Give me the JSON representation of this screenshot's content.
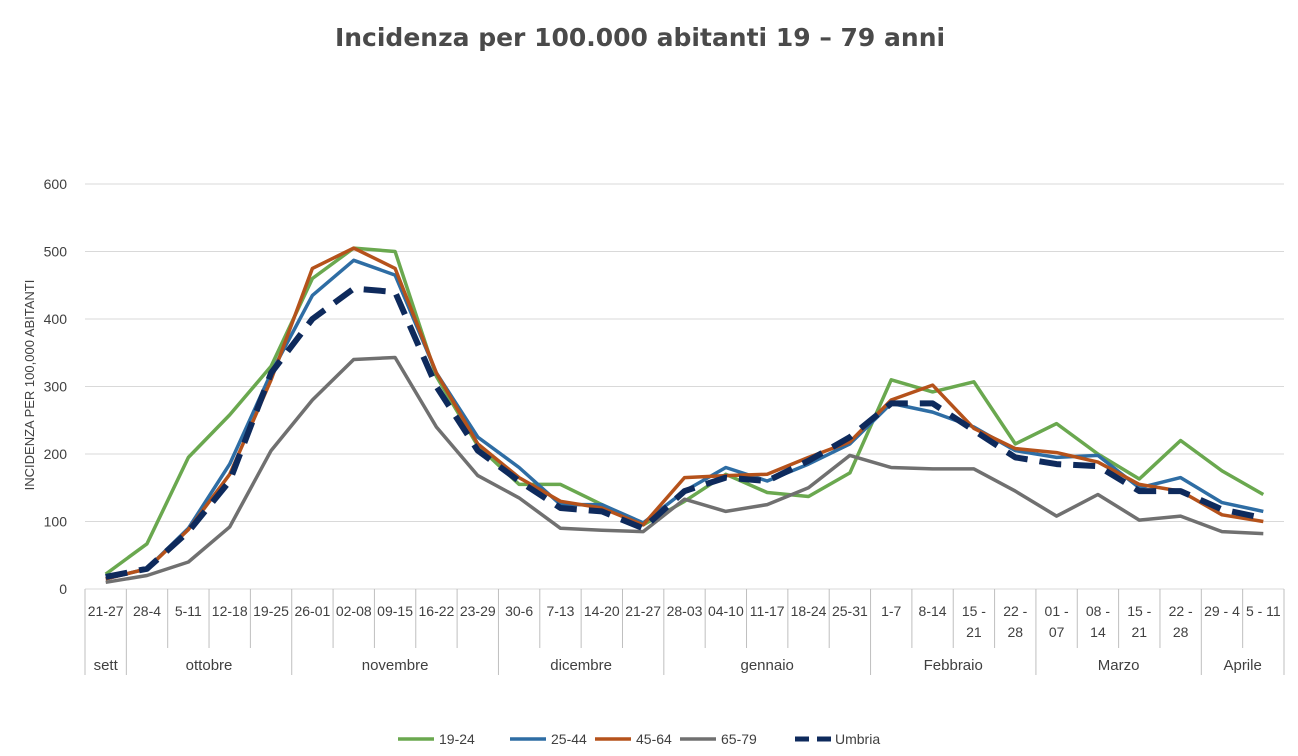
{
  "chart_data": {
    "type": "line",
    "title": "Incidenza per 100.000 abitanti 19 – 79 anni",
    "ylabel": "INCIDENZA PER 100,000 ABITANTI",
    "ylim": [
      0,
      600
    ],
    "yticks": [
      "0",
      "100",
      "200",
      "300",
      "400",
      "500",
      "600"
    ],
    "categories": [
      [
        "21-27"
      ],
      [
        "28-4"
      ],
      [
        "5-11"
      ],
      [
        "12-18"
      ],
      [
        "19-25"
      ],
      [
        "26-01"
      ],
      [
        "02-08"
      ],
      [
        "09-15"
      ],
      [
        "16-22"
      ],
      [
        "23-29"
      ],
      [
        "30-6"
      ],
      [
        "7-13"
      ],
      [
        "14-20"
      ],
      [
        "21-27"
      ],
      [
        "28-03"
      ],
      [
        "04-10"
      ],
      [
        "11-17"
      ],
      [
        "18-24"
      ],
      [
        "25-31"
      ],
      [
        "1-7"
      ],
      [
        "8-14"
      ],
      [
        "15 -",
        "21"
      ],
      [
        "22 -",
        "28"
      ],
      [
        "01 -",
        "07"
      ],
      [
        "08 -",
        "14"
      ],
      [
        "15 -",
        "21"
      ],
      [
        "22 -",
        "28"
      ],
      [
        "29 - 4"
      ],
      [
        "5 - 11"
      ]
    ],
    "months": [
      {
        "label": "sett",
        "count": 1
      },
      {
        "label": "ottobre",
        "count": 4
      },
      {
        "label": "novembre",
        "count": 5
      },
      {
        "label": "dicembre",
        "count": 4
      },
      {
        "label": "gennaio",
        "count": 5
      },
      {
        "label": "Febbraio",
        "count": 4
      },
      {
        "label": "Marzo",
        "count": 4
      },
      {
        "label": "Aprile",
        "count": 2
      }
    ],
    "series": [
      {
        "name": "19-24",
        "color": "#6aa84f",
        "dashed": false,
        "values": [
          22,
          67,
          195,
          258,
          330,
          460,
          505,
          500,
          315,
          212,
          155,
          155,
          125,
          95,
          130,
          170,
          143,
          137,
          172,
          310,
          292,
          307,
          215,
          245,
          200,
          163,
          220,
          175,
          140
        ]
      },
      {
        "name": "25-44",
        "color": "#2e6da4",
        "dashed": false,
        "values": [
          15,
          30,
          90,
          185,
          320,
          435,
          487,
          465,
          320,
          225,
          180,
          125,
          125,
          98,
          145,
          180,
          160,
          185,
          215,
          275,
          262,
          240,
          205,
          195,
          198,
          150,
          165,
          128,
          115
        ]
      },
      {
        "name": "45-64",
        "color": "#b5521b",
        "dashed": false,
        "values": [
          15,
          30,
          88,
          170,
          310,
          475,
          505,
          475,
          320,
          215,
          165,
          130,
          120,
          95,
          165,
          168,
          170,
          195,
          218,
          280,
          302,
          238,
          208,
          202,
          188,
          155,
          145,
          110,
          100
        ]
      },
      {
        "name": "65-79",
        "color": "#707070",
        "dashed": false,
        "values": [
          10,
          20,
          40,
          92,
          205,
          280,
          340,
          343,
          240,
          168,
          135,
          90,
          87,
          85,
          133,
          115,
          125,
          150,
          198,
          180,
          178,
          178,
          145,
          108,
          140,
          102,
          108,
          85,
          82
        ]
      },
      {
        "name": "Umbria",
        "color": "#0e2a5c",
        "dashed": true,
        "values": [
          18,
          30,
          85,
          160,
          320,
          400,
          445,
          440,
          300,
          205,
          160,
          120,
          115,
          90,
          145,
          165,
          160,
          190,
          225,
          275,
          275,
          235,
          195,
          185,
          182,
          145,
          145,
          118,
          105
        ]
      }
    ]
  }
}
